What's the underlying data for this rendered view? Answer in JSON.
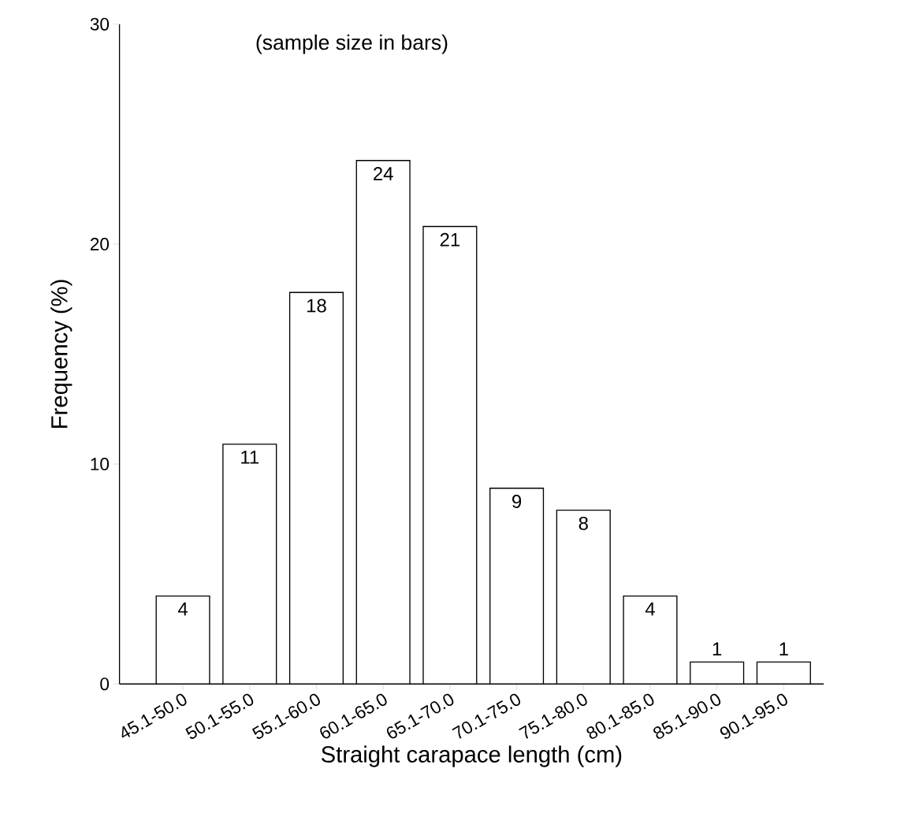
{
  "chart_data": {
    "type": "bar",
    "categories": [
      "45.1-50.0",
      "50.1-55.0",
      "55.1-60.0",
      "60.1-65.0",
      "65.1-70.0",
      "70.1-75.0",
      "75.1-80.0",
      "80.1-85.0",
      "85.1-90.0",
      "90.1-95.0"
    ],
    "values": [
      4.0,
      10.9,
      17.8,
      23.8,
      20.8,
      8.9,
      7.9,
      4.0,
      1.0,
      1.0
    ],
    "value_labels": [
      "4",
      "11",
      "18",
      "24",
      "21",
      "9",
      "8",
      "4",
      "1",
      "1"
    ],
    "color": "#ffffff",
    "xlabel": "Straight carapace length (cm)",
    "ylabel": "Frequency (%)",
    "annotations": [
      "(sample size in bars)"
    ],
    "ylim": [
      0,
      30
    ],
    "yticks": [
      0,
      10,
      20,
      30
    ],
    "grid": false
  }
}
